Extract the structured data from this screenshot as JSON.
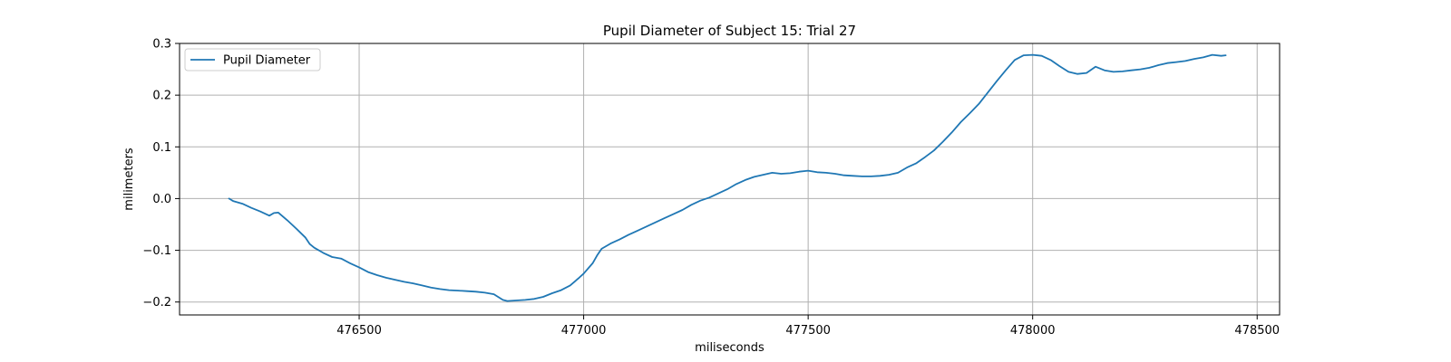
{
  "chart_data": {
    "type": "line",
    "title": "Pupil Diameter of Subject 15: Trial 27",
    "xlabel": "miliseconds",
    "ylabel": "milimeters",
    "xlim": [
      476100,
      478550
    ],
    "ylim": [
      -0.225,
      0.3
    ],
    "xticks": [
      476500,
      477000,
      477500,
      478000,
      478500
    ],
    "yticks": [
      -0.2,
      -0.1,
      0.0,
      0.1,
      0.2,
      0.3
    ],
    "xtick_labels": [
      "476500",
      "477000",
      "477500",
      "478000",
      "478500"
    ],
    "ytick_labels": [
      "−0.2",
      "−0.1",
      "0.0",
      "0.1",
      "0.2",
      "0.3"
    ],
    "grid": true,
    "legend_position": "top-left",
    "series": [
      {
        "name": "Pupil Diameter",
        "color": "#1f77b4",
        "x": [
          476210,
          476220,
          476240,
          476260,
          476280,
          476300,
          476310,
          476320,
          476340,
          476360,
          476380,
          476390,
          476400,
          476420,
          476440,
          476460,
          476480,
          476500,
          476520,
          476540,
          476560,
          476580,
          476600,
          476620,
          476640,
          476660,
          476680,
          476700,
          476720,
          476740,
          476760,
          476780,
          476800,
          476820,
          476830,
          476850,
          476870,
          476890,
          476910,
          476930,
          476950,
          476970,
          476990,
          477000,
          477020,
          477030,
          477040,
          477060,
          477080,
          477100,
          477120,
          477140,
          477160,
          477180,
          477200,
          477220,
          477240,
          477260,
          477280,
          477300,
          477320,
          477340,
          477360,
          477380,
          477400,
          477420,
          477440,
          477460,
          477480,
          477500,
          477520,
          477540,
          477560,
          477580,
          477600,
          477620,
          477640,
          477660,
          477680,
          477700,
          477720,
          477740,
          477760,
          477780,
          477800,
          477820,
          477840,
          477860,
          477880,
          477900,
          477920,
          477940,
          477960,
          477980,
          478000,
          478020,
          478040,
          478060,
          478080,
          478100,
          478120,
          478140,
          478160,
          478180,
          478200,
          478220,
          478240,
          478260,
          478280,
          478300,
          478320,
          478340,
          478360,
          478380,
          478400,
          478420,
          478430
        ],
        "values": [
          0.0,
          -0.005,
          -0.01,
          -0.018,
          -0.025,
          -0.033,
          -0.028,
          -0.027,
          -0.042,
          -0.058,
          -0.075,
          -0.088,
          -0.095,
          -0.105,
          -0.113,
          -0.116,
          -0.125,
          -0.133,
          -0.142,
          -0.148,
          -0.153,
          -0.157,
          -0.161,
          -0.164,
          -0.168,
          -0.172,
          -0.175,
          -0.177,
          -0.178,
          -0.179,
          -0.18,
          -0.182,
          -0.185,
          -0.196,
          -0.198,
          -0.197,
          -0.196,
          -0.194,
          -0.19,
          -0.183,
          -0.177,
          -0.168,
          -0.153,
          -0.145,
          -0.125,
          -0.11,
          -0.097,
          -0.087,
          -0.079,
          -0.07,
          -0.062,
          -0.054,
          -0.046,
          -0.038,
          -0.03,
          -0.022,
          -0.012,
          -0.004,
          0.002,
          0.01,
          0.018,
          0.028,
          0.036,
          0.042,
          0.046,
          0.05,
          0.048,
          0.049,
          0.052,
          0.054,
          0.051,
          0.05,
          0.048,
          0.045,
          0.044,
          0.043,
          0.043,
          0.044,
          0.046,
          0.05,
          0.06,
          0.068,
          0.08,
          0.093,
          0.11,
          0.128,
          0.148,
          0.165,
          0.183,
          0.205,
          0.227,
          0.248,
          0.268,
          0.277,
          0.278,
          0.276,
          0.268,
          0.256,
          0.245,
          0.241,
          0.243,
          0.255,
          0.248,
          0.245,
          0.246,
          0.248,
          0.25,
          0.253,
          0.258,
          0.262,
          0.264,
          0.266,
          0.27,
          0.273,
          0.278,
          0.276,
          0.277
        ]
      }
    ]
  }
}
